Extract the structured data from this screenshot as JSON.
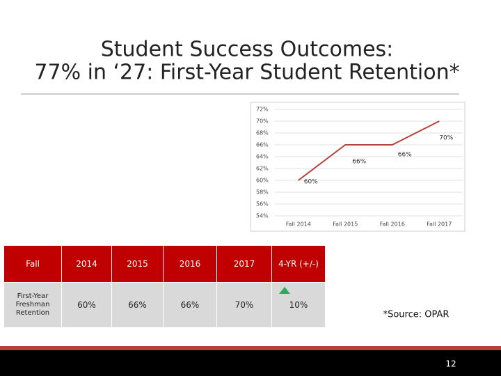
{
  "title_lines": [
    "Student Success Outcomes:",
    "77% in ‘27: First-Year Student Retention*"
  ],
  "chart_data": {
    "type": "line",
    "categories": [
      "Fall 2014",
      "Fall 2015",
      "Fall 2016",
      "Fall 2017"
    ],
    "series": [
      {
        "color": "#b5413a",
        "values": [
          60,
          66,
          66,
          70
        ],
        "value_labels": [
          "60%",
          "66%",
          "66%",
          "70%"
        ]
      }
    ],
    "ylim": [
      54,
      72
    ],
    "yticks": [
      {
        "value": 54,
        "label": "54%"
      },
      {
        "value": 56,
        "label": "56%"
      },
      {
        "value": 58,
        "label": "58%"
      },
      {
        "value": 60,
        "label": "60%"
      },
      {
        "value": 62,
        "label": "62%"
      },
      {
        "value": 64,
        "label": "64%"
      },
      {
        "value": 66,
        "label": "66%"
      },
      {
        "value": 68,
        "label": "68%"
      },
      {
        "value": 70,
        "label": "70%"
      },
      {
        "value": 72,
        "label": "72%"
      }
    ],
    "grid": true
  },
  "table": {
    "header": [
      "Fall",
      "2014",
      "2015",
      "2016",
      "2017",
      "4-YR (+/-)"
    ],
    "rows": [
      [
        "First-Year Freshman Retention",
        "60%",
        "66%",
        "66%",
        "70%",
        "10%"
      ]
    ]
  },
  "source": "*Source: OPAR",
  "page_number": "12"
}
